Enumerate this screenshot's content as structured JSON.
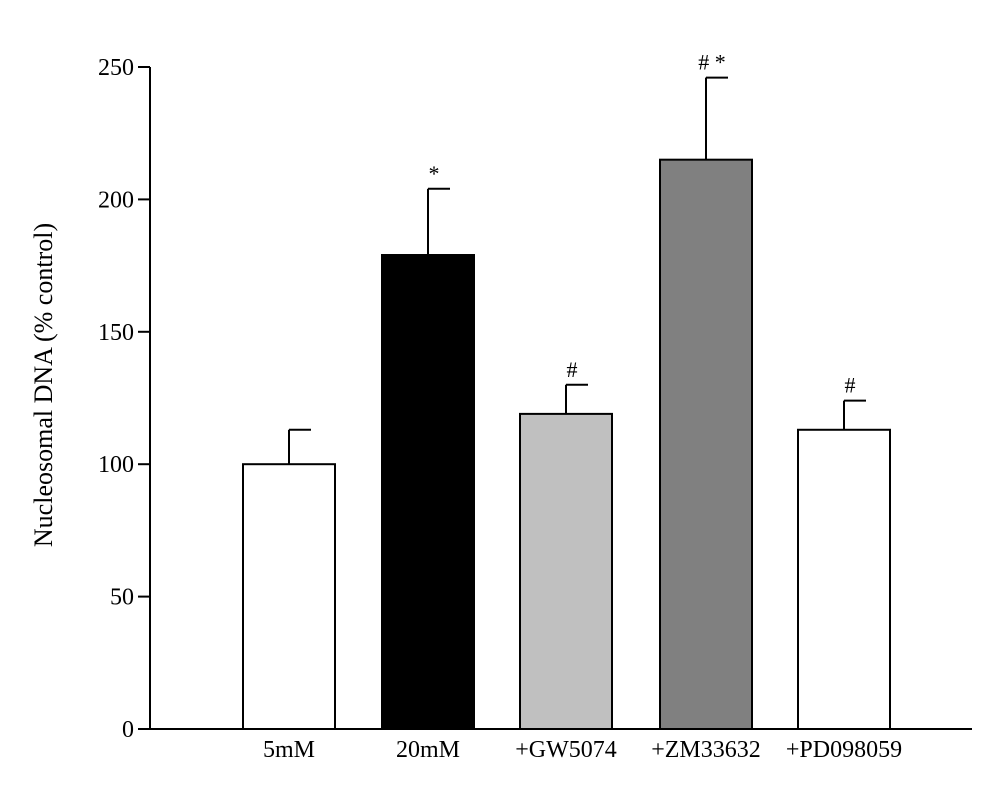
{
  "chart_data": {
    "type": "bar",
    "title": "",
    "xlabel": "",
    "ylabel": "Nucleosomal DNA (% control)",
    "ylim": [
      0,
      250
    ],
    "yticks": [
      "0",
      "50",
      "100",
      "150",
      "200",
      "250"
    ],
    "categories": [
      "5mM",
      "20mM",
      "+GW5074",
      "+ZM33632",
      "+PD098059"
    ],
    "values": [
      100,
      179,
      119,
      215,
      113
    ],
    "errors": [
      13,
      25,
      11,
      31,
      11
    ],
    "annotations": [
      "",
      "*",
      "#",
      "# *",
      "#"
    ],
    "bar_colors": [
      "#ffffff",
      "#000000",
      "#c0c0c0",
      "#808080",
      "#ffffff"
    ],
    "grid": false
  }
}
